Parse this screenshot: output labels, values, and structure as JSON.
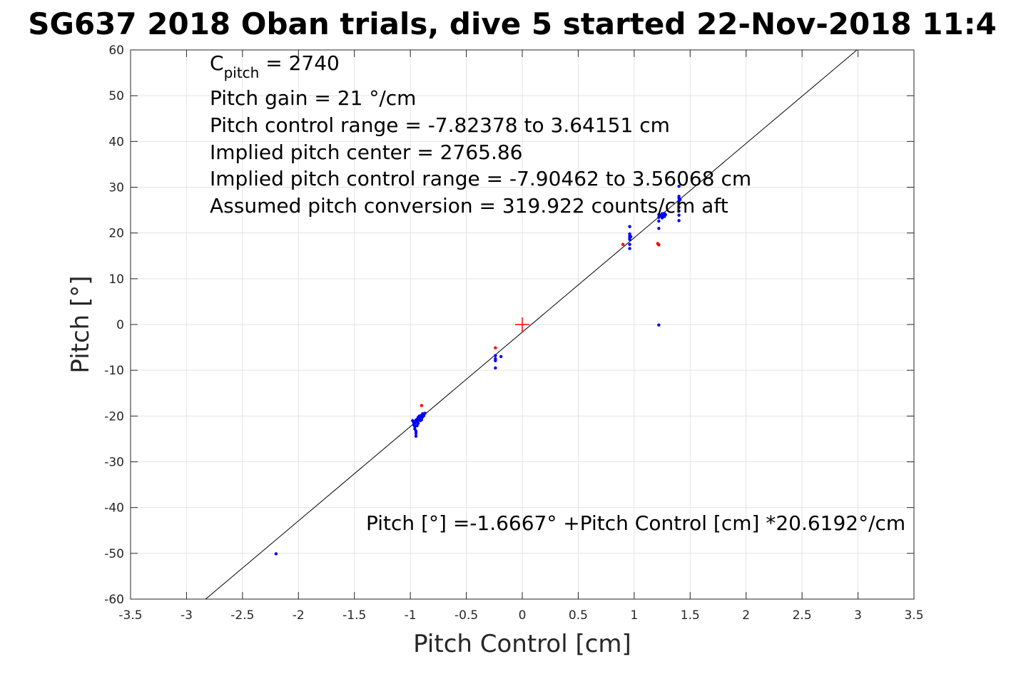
{
  "chart_data": {
    "type": "scatter",
    "title": "SG637 2018 Oban trials, dive 5 started 22-Nov-2018 11:4",
    "xlabel": "Pitch Control [cm]",
    "ylabel": "Pitch [°]",
    "xlim": [
      -3.5,
      3.5
    ],
    "ylim": [
      -60,
      60
    ],
    "xticks": [
      -3.5,
      -3,
      -2.5,
      -2,
      -1.5,
      -1,
      -0.5,
      0,
      0.5,
      1,
      1.5,
      2,
      2.5,
      3,
      3.5
    ],
    "xtick_labels": [
      "-3.5",
      "-3",
      "-2.5",
      "-2",
      "-1.5",
      "-1",
      "-0.5",
      "0",
      "0.5",
      "1",
      "1.5",
      "2",
      "2.5",
      "3",
      "3.5"
    ],
    "yticks": [
      -60,
      -50,
      -40,
      -30,
      -20,
      -10,
      0,
      10,
      20,
      30,
      40,
      50,
      60
    ],
    "ytick_labels": [
      "-60",
      "-50",
      "-40",
      "-30",
      "-20",
      "-10",
      "0",
      "10",
      "20",
      "30",
      "40",
      "50",
      "60"
    ],
    "grid": true,
    "colors": {
      "blue": "#0000ff",
      "red": "#ff0000",
      "line": "#000000",
      "grid": "#e3e3e3",
      "axis": "#262626"
    },
    "fit_line": {
      "intercept": -1.6667,
      "slope": 20.6192
    },
    "center_marker": {
      "x": 0,
      "y": 0,
      "color": "#ff0000"
    },
    "series": [
      {
        "color": "#0000ff",
        "points": [
          [
            -2.2,
            -50.1
          ],
          [
            -0.98,
            -21.0
          ],
          [
            -0.97,
            -21.4
          ],
          [
            -0.97,
            -21.9
          ],
          [
            -0.96,
            -22.3
          ],
          [
            -0.96,
            -22.8
          ],
          [
            -0.95,
            -23.3
          ],
          [
            -0.95,
            -23.8
          ],
          [
            -0.95,
            -24.4
          ],
          [
            -0.96,
            -21.6
          ],
          [
            -0.94,
            -20.7
          ],
          [
            -0.94,
            -21.3
          ],
          [
            -0.94,
            -22.1
          ],
          [
            -0.93,
            -20.3
          ],
          [
            -0.93,
            -20.9
          ],
          [
            -0.92,
            -20.0
          ],
          [
            -0.92,
            -20.6
          ],
          [
            -0.91,
            -20.2
          ],
          [
            -0.9,
            -19.8
          ],
          [
            -0.9,
            -20.8
          ],
          [
            -0.89,
            -19.5
          ],
          [
            -0.89,
            -20.2
          ],
          [
            -0.88,
            -19.9
          ],
          [
            -0.87,
            -19.4
          ],
          [
            -0.97,
            -21.2
          ],
          [
            -0.95,
            -20.9
          ],
          [
            -0.93,
            -21.6
          ],
          [
            -0.91,
            -21.0
          ],
          [
            -0.24,
            -6.8
          ],
          [
            -0.24,
            -7.5
          ],
          [
            -0.24,
            -7.9
          ],
          [
            -0.24,
            -9.5
          ],
          [
            -0.19,
            -7.0
          ],
          [
            0.96,
            21.4
          ],
          [
            0.96,
            19.8
          ],
          [
            0.96,
            19.4
          ],
          [
            0.96,
            19.0
          ],
          [
            0.96,
            18.6
          ],
          [
            0.96,
            17.5
          ],
          [
            0.96,
            16.6
          ],
          [
            0.97,
            19.2
          ],
          [
            1.22,
            24.0
          ],
          [
            1.22,
            23.4
          ],
          [
            1.22,
            22.6
          ],
          [
            1.22,
            21.0
          ],
          [
            1.22,
            -0.1
          ],
          [
            1.23,
            23.9
          ],
          [
            1.24,
            23.7
          ],
          [
            1.25,
            24.2
          ],
          [
            1.25,
            23.3
          ],
          [
            1.26,
            23.9
          ],
          [
            1.27,
            24.3
          ],
          [
            1.27,
            23.6
          ],
          [
            1.28,
            24.0
          ],
          [
            1.4,
            30.2
          ],
          [
            1.4,
            28.0
          ],
          [
            1.4,
            27.6
          ],
          [
            1.4,
            27.0
          ],
          [
            1.4,
            26.4
          ],
          [
            1.4,
            25.6
          ],
          [
            1.4,
            24.8
          ],
          [
            1.4,
            23.9
          ],
          [
            1.4,
            22.7
          ],
          [
            1.41,
            27.3
          ]
        ]
      },
      {
        "color": "#ff0000",
        "points": [
          [
            -0.9,
            -17.7
          ],
          [
            -0.24,
            -5.1
          ],
          [
            0.9,
            17.5
          ],
          [
            1.21,
            17.7
          ],
          [
            1.22,
            17.4
          ]
        ]
      }
    ],
    "annotations": {
      "c_pitch_main": "C",
      "c_pitch_sub": "pitch",
      "c_pitch_value": " = 2740",
      "lines": [
        "Pitch gain = 21 °/cm",
        "Pitch control range = -7.82378 to 3.64151 cm",
        "Implied pitch center = 2765.86",
        "Implied pitch control range = -7.90462 to 3.56068 cm",
        "Assumed pitch conversion = 319.922 counts/cm aft"
      ],
      "fit_equation": "Pitch [°] =-1.6667° +Pitch Control [cm] *20.6192°/cm"
    }
  }
}
